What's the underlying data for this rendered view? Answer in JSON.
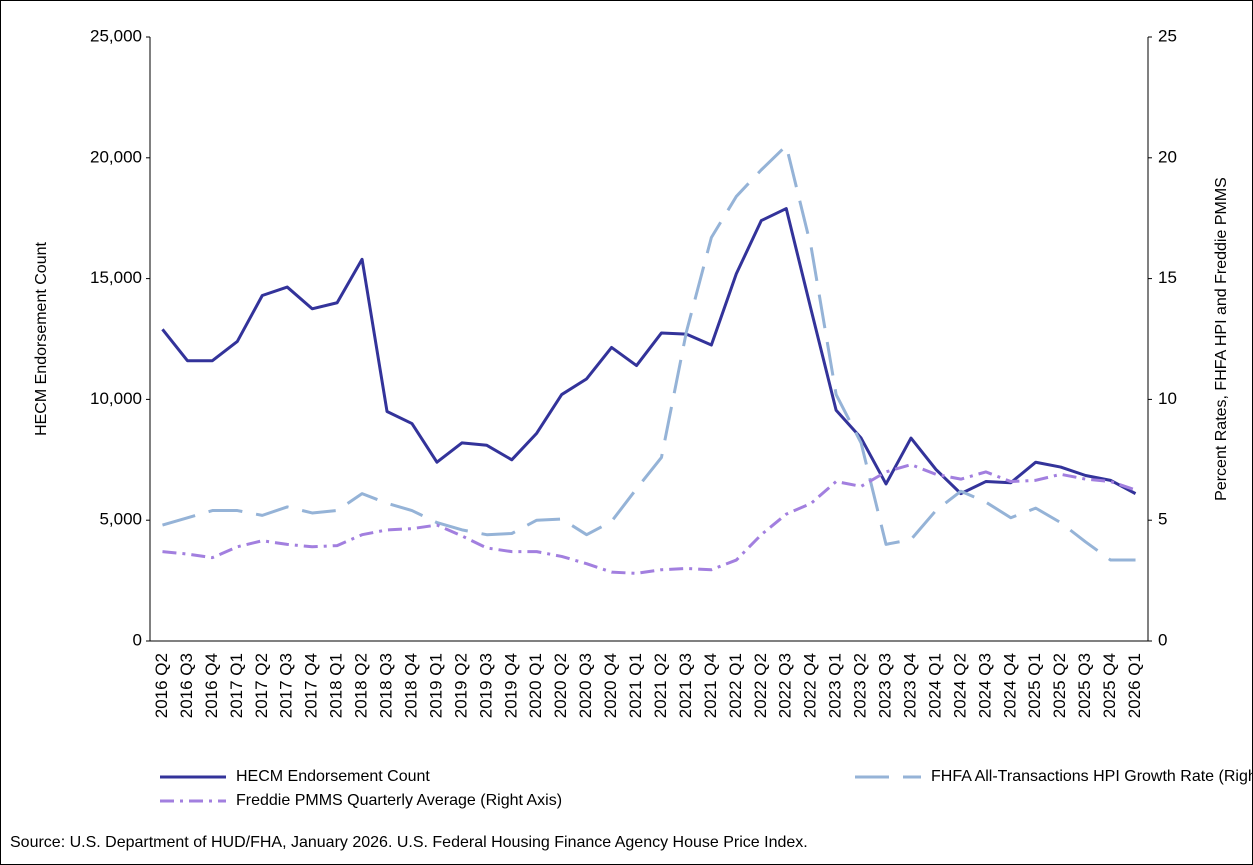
{
  "chart_data": {
    "type": "line",
    "categories": [
      "2016 Q2",
      "2016 Q3",
      "2016 Q4",
      "2017 Q1",
      "2017 Q2",
      "2017 Q3",
      "2017 Q4",
      "2018 Q1",
      "2018 Q2",
      "2018 Q3",
      "2018 Q4",
      "2019 Q1",
      "2019 Q2",
      "2019 Q3",
      "2019 Q4",
      "2020 Q1",
      "2020 Q2",
      "2020 Q3",
      "2020 Q4",
      "2021 Q1",
      "2021 Q2",
      "2021 Q3",
      "2021 Q4",
      "2022 Q1",
      "2022 Q2",
      "2022 Q3",
      "2022 Q4",
      "2023 Q1",
      "2023 Q2",
      "2023 Q3",
      "2023 Q4",
      "2024 Q1",
      "2024 Q2",
      "2024 Q3",
      "2024 Q4",
      "2025 Q1",
      "2025 Q2",
      "2025 Q3",
      "2025 Q4",
      "2026 Q1"
    ],
    "series": [
      {
        "name": "HECM Endorsement Count",
        "color": "#33339a",
        "axis": "y",
        "values": [
          12900,
          11600,
          11600,
          12400,
          14300,
          14650,
          13750,
          14000,
          15800,
          9500,
          9000,
          7400,
          8200,
          8100,
          7500,
          8600,
          10200,
          10850,
          12150,
          11400,
          12750,
          12700,
          12250,
          15200,
          17400,
          17900,
          13700,
          9550,
          8400,
          6500,
          8400,
          7100,
          6100,
          6600,
          6550,
          7400,
          7200,
          6850,
          6650,
          6100
        ]
      },
      {
        "name": "FHFA All-Transactions HPI Growth Rate (Right Axis)",
        "color": "#95b3d7",
        "axis": "y2",
        "values": [
          4.8,
          5.1,
          5.4,
          5.4,
          5.2,
          5.55,
          5.3,
          5.4,
          6.1,
          5.7,
          5.4,
          4.9,
          4.6,
          4.4,
          4.45,
          5.0,
          5.05,
          4.4,
          4.95,
          6.3,
          7.6,
          12.8,
          16.7,
          18.4,
          19.5,
          20.5,
          16.3,
          10.2,
          8.2,
          4.0,
          4.2,
          5.4,
          6.2,
          5.75,
          5.1,
          5.5,
          4.9,
          4.1,
          3.35,
          3.35
        ]
      },
      {
        "name": "Freddie PMMS Quarterly Average (Right Axis)",
        "color": "#a27fdf",
        "axis": "y2",
        "values": [
          3.7,
          3.6,
          3.45,
          3.9,
          4.15,
          4.0,
          3.9,
          3.95,
          4.4,
          4.6,
          4.65,
          4.8,
          4.35,
          3.85,
          3.7,
          3.7,
          3.5,
          3.2,
          2.85,
          2.8,
          2.95,
          3.0,
          2.95,
          3.35,
          4.4,
          5.25,
          5.7,
          6.6,
          6.4,
          7.0,
          7.3,
          6.9,
          6.7,
          7.0,
          6.6,
          6.65,
          6.9,
          6.7,
          6.6,
          6.25
        ]
      }
    ],
    "ylabel": "HECM Endorsement Count",
    "y2label": "Percent Rates, FHFA HPI and Freddie PMMS",
    "ylim": [
      0,
      25000
    ],
    "yticks": [
      0,
      {
        "value": 5000,
        "label": "5,000"
      },
      {
        "value": 10000,
        "label": "10,000"
      },
      {
        "value": 15000,
        "label": "15,000"
      },
      {
        "value": 20000,
        "label": "20,000"
      },
      {
        "value": 25000,
        "label": "25,000"
      }
    ],
    "y2lim": [
      0,
      25
    ],
    "y2ticks": [
      0,
      5,
      10,
      15,
      20,
      25
    ],
    "grid": false,
    "legend": "bottom",
    "source": "Source: U.S. Department of HUD/FHA, January 2026. U.S. Federal Housing Finance Agency House Price Index."
  }
}
